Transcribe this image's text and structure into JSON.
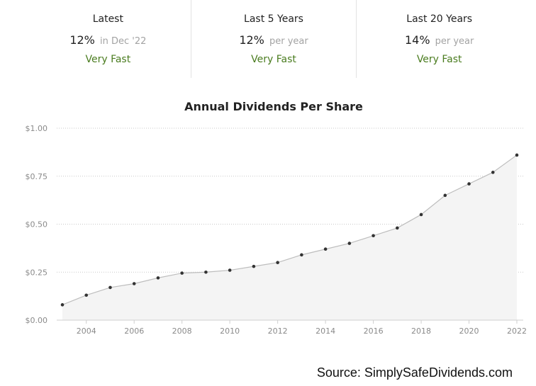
{
  "stats": [
    {
      "label": "Latest",
      "value": "12%",
      "suffix": "in Dec '22",
      "rating": "Very Fast"
    },
    {
      "label": "Last 5 Years",
      "value": "12%",
      "suffix": "per year",
      "rating": "Very Fast"
    },
    {
      "label": "Last 20 Years",
      "value": "14%",
      "suffix": "per year",
      "rating": "Very Fast"
    }
  ],
  "source": "Source: SimplySafeDividends.com",
  "colors": {
    "rating": "#4a7c1f",
    "line": "#bdbdbd",
    "area": "#f4f4f4",
    "point": "#333333",
    "grid": "#c9c9c9"
  },
  "chart_data": {
    "type": "area",
    "title": "Annual Dividends Per Share",
    "xlabel": "",
    "ylabel": "",
    "x": [
      2003,
      2004,
      2005,
      2006,
      2007,
      2008,
      2009,
      2010,
      2011,
      2012,
      2013,
      2014,
      2015,
      2016,
      2017,
      2018,
      2019,
      2020,
      2021,
      2022
    ],
    "series": [
      {
        "values": [
          0.08,
          0.13,
          0.17,
          0.19,
          0.22,
          0.245,
          0.25,
          0.26,
          0.28,
          0.3,
          0.34,
          0.37,
          0.4,
          0.44,
          0.48,
          0.55,
          0.65,
          0.71,
          0.77,
          0.86
        ]
      }
    ],
    "ylim": [
      0,
      1.0
    ],
    "y_ticks": [
      {
        "value": 0,
        "label": "$0.00"
      },
      {
        "value": 0.25,
        "label": "$0.25"
      },
      {
        "value": 0.5,
        "label": "$0.50"
      },
      {
        "value": 0.75,
        "label": "$0.75"
      },
      {
        "value": 1.0,
        "label": "$1.00"
      }
    ],
    "x_ticks": [
      2004,
      2006,
      2008,
      2010,
      2012,
      2014,
      2016,
      2018,
      2020,
      2022
    ],
    "grid": true,
    "legend": "none"
  }
}
